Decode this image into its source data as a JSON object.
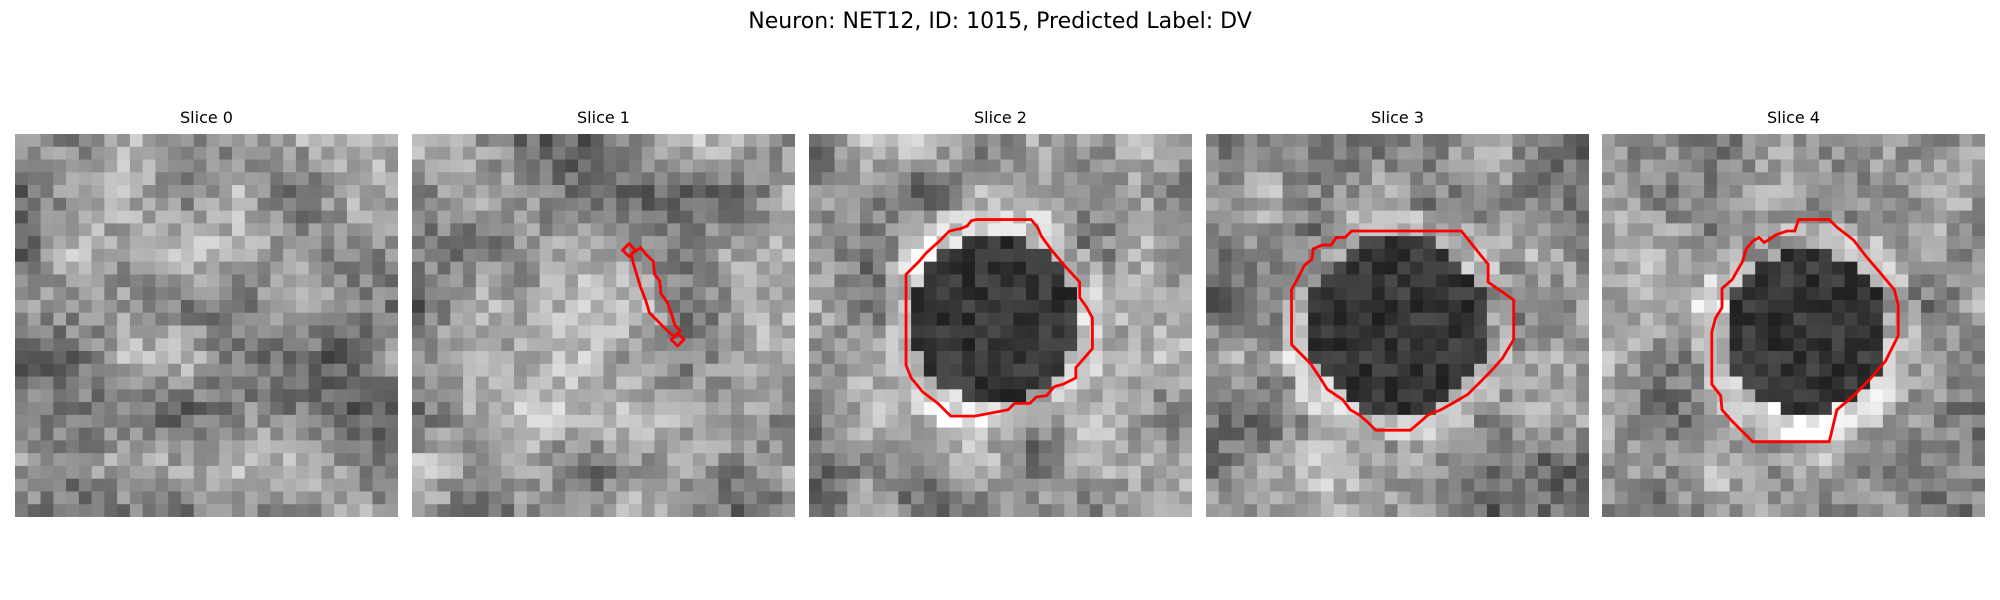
{
  "figure": {
    "title": "Neuron: NET12, ID: 1015, Predicted Label: DV",
    "outline_color": "#ff0000"
  },
  "panels": [
    {
      "title": "Slice 0",
      "outline": "none"
    },
    {
      "title": "Slice 1",
      "outline": "thin-elongated"
    },
    {
      "title": "Slice 2",
      "outline": "large-ring"
    },
    {
      "title": "Slice 3",
      "outline": "large-ring"
    },
    {
      "title": "Slice 4",
      "outline": "large-ring"
    }
  ]
}
